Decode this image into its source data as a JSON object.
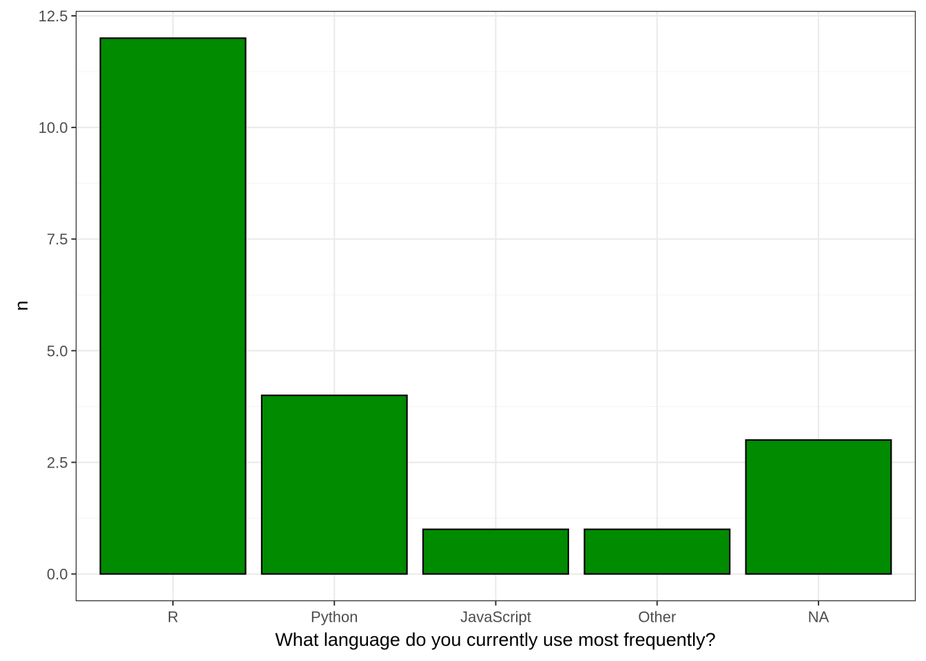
{
  "chart_data": {
    "type": "bar",
    "title": "",
    "xlabel": "What language do you currently use most frequently?",
    "ylabel": "n",
    "categories": [
      "R",
      "Python",
      "JavaScript",
      "Other",
      "NA"
    ],
    "values": [
      12,
      4,
      1,
      1,
      3
    ],
    "ylim": [
      -0.6,
      12.6
    ],
    "y_ticks": [
      0.0,
      2.5,
      5.0,
      7.5,
      10.0,
      12.5
    ],
    "y_tick_labels": [
      "0.0",
      "2.5",
      "5.0",
      "7.5",
      "10.0",
      "12.5"
    ],
    "grid": true,
    "legend": "none",
    "colors": {
      "bar_fill": "#008B00",
      "bar_stroke": "#000000",
      "grid_major": "#ebebeb",
      "grid_minor": "#f4f4f4",
      "panel_border": "#333333",
      "tick_text": "#4d4d4d"
    }
  }
}
